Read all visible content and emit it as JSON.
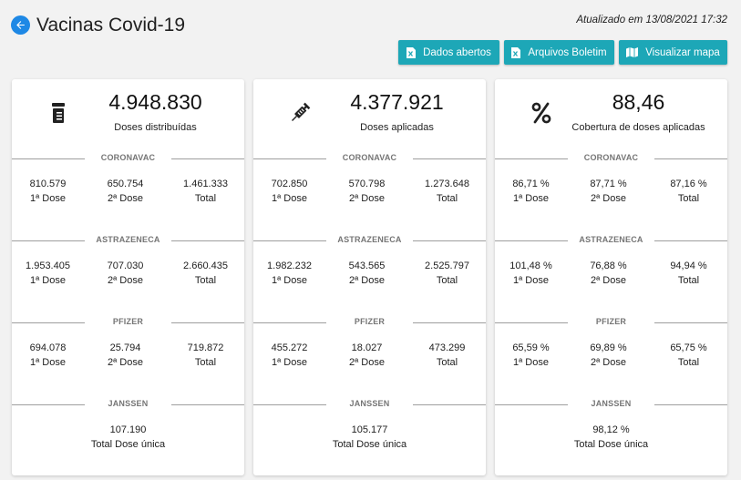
{
  "header": {
    "title": "Vacinas Covid-19",
    "updated": "Atualizado em 13/08/2021 17:32",
    "buttons": {
      "open_data": "Dados abertos",
      "files": "Arquivos Boletim",
      "map": "Visualizar mapa"
    }
  },
  "colors": {
    "accent": "#1da7b7",
    "back_button": "#1e88e5"
  },
  "dose_labels": {
    "first": "1ª Dose",
    "second": "2ª Dose",
    "total": "Total",
    "single_total": "Total Dose única"
  },
  "cards": [
    {
      "icon": "vial-icon",
      "value": "4.948.830",
      "label": "Doses distribuídas",
      "sections": [
        {
          "name": "CORONAVAC",
          "first": "810.579",
          "second": "650.754",
          "total": "1.461.333"
        },
        {
          "name": "ASTRAZENECA",
          "first": "1.953.405",
          "second": "707.030",
          "total": "2.660.435"
        },
        {
          "name": "PFIZER",
          "first": "694.078",
          "second": "25.794",
          "total": "719.872"
        },
        {
          "name": "JANSSEN",
          "single": "107.190"
        }
      ]
    },
    {
      "icon": "syringe-icon",
      "value": "4.377.921",
      "label": "Doses aplicadas",
      "sections": [
        {
          "name": "CORONAVAC",
          "first": "702.850",
          "second": "570.798",
          "total": "1.273.648"
        },
        {
          "name": "ASTRAZENECA",
          "first": "1.982.232",
          "second": "543.565",
          "total": "2.525.797"
        },
        {
          "name": "PFIZER",
          "first": "455.272",
          "second": "18.027",
          "total": "473.299"
        },
        {
          "name": "JANSSEN",
          "single": "105.177"
        }
      ]
    },
    {
      "icon": "percent-icon",
      "value": "88,46",
      "label": "Cobertura de doses aplicadas",
      "sections": [
        {
          "name": "CORONAVAC",
          "first": "86,71 %",
          "second": "87,71 %",
          "total": "87,16 %"
        },
        {
          "name": "ASTRAZENECA",
          "first": "101,48 %",
          "second": "76,88 %",
          "total": "94,94 %"
        },
        {
          "name": "PFIZER",
          "first": "65,59 %",
          "second": "69,89 %",
          "total": "65,75 %"
        },
        {
          "name": "JANSSEN",
          "single": "98,12 %"
        }
      ]
    }
  ]
}
